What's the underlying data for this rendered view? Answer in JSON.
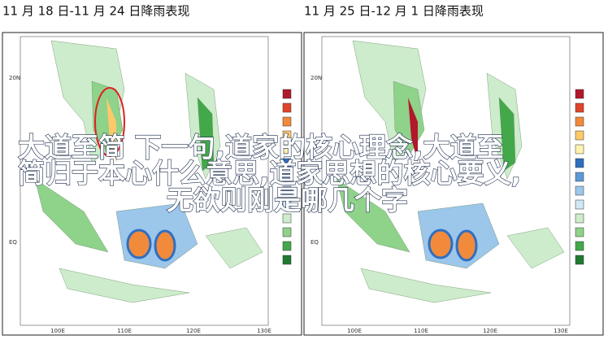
{
  "panels": [
    {
      "title": "11 月 18 日-11 月 24 日降雨表现",
      "lat_labels": [
        "20N",
        "EQ"
      ],
      "lon_labels": [
        "100E",
        "110E",
        "120E",
        "130E"
      ]
    },
    {
      "title": "11 月 25 日-12 月 1 日降雨表现",
      "lat_labels": [
        "20N",
        "EQ"
      ],
      "lon_labels": [
        "100E",
        "110E",
        "120E",
        "130E"
      ]
    }
  ],
  "overlay_lines": [
    "大道至简 下一句,道家的核心理念,大道至",
    "简归于本心什么意思,道家思想的核心要义,",
    "无欲则刚是哪几个字"
  ]
}
